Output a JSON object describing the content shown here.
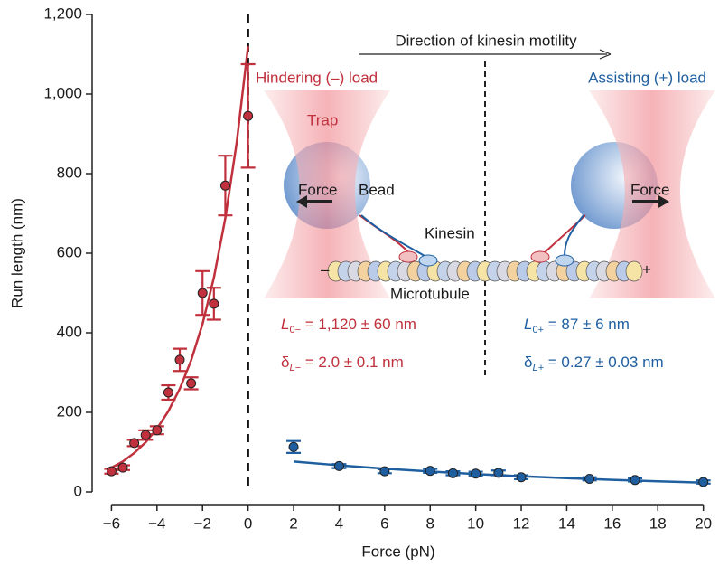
{
  "chart_data": {
    "type": "scatter",
    "xlabel": "Force (pN)",
    "ylabel": "Run length (nm)",
    "xlim": [
      -6.85,
      20.45
    ],
    "ylim": [
      0,
      1200
    ],
    "xticks": [
      {
        "value": -6,
        "label": "−6"
      },
      {
        "value": -4,
        "label": "−4"
      },
      {
        "value": -2,
        "label": "−2"
      },
      0,
      2,
      4,
      6,
      8,
      10,
      12,
      14,
      16,
      18,
      20
    ],
    "yticks": [
      0,
      200,
      400,
      600,
      800,
      {
        "value": 1000,
        "label": "1,000"
      },
      {
        "value": 1200,
        "label": "1,200"
      }
    ],
    "vline": 0,
    "series": [
      {
        "color": "#c0303d",
        "x": [
          -6,
          -5.5,
          -5,
          -4.5,
          -4,
          -3.5,
          -3,
          -2.5,
          -2,
          -1.5,
          -1,
          0
        ],
        "values": [
          52,
          61,
          123,
          143,
          155,
          250,
          332,
          273,
          500,
          473,
          770,
          945
        ],
        "errors": [
          6,
          6,
          8,
          12,
          10,
          18,
          28,
          15,
          55,
          40,
          75,
          130
        ]
      },
      {
        "color": "#1f5fa0",
        "x": [
          2,
          4,
          6,
          8,
          9,
          10,
          11,
          12,
          15,
          17,
          20
        ],
        "values": [
          113,
          65,
          52,
          53,
          47,
          46,
          48,
          37,
          33,
          30,
          25
        ],
        "errors": [
          15,
          5,
          5,
          5,
          5,
          5,
          6,
          5,
          4,
          4,
          4
        ]
      },
      {
        "color": "#c0303d",
        "x": [
          -6.2,
          -5.5,
          -5,
          -4.5,
          -4,
          -3.5,
          -3,
          -2.5,
          -2,
          -1.5,
          -1,
          -0.5,
          0
        ],
        "values": [
          54.5,
          76.6,
          97.8,
          124.7,
          159.2,
          203.2,
          259.3,
          330.8,
          422.2,
          538.8,
          687.7,
          877.6,
          1120
        ]
      },
      {
        "color": "#1f5fa0",
        "x": [
          2,
          4,
          6,
          8,
          10,
          12,
          14,
          16,
          18,
          20
        ],
        "values": [
          76.3,
          66.9,
          58.6,
          51.4,
          45.0,
          39.5,
          34.6,
          30.3,
          26.6,
          23.3
        ]
      }
    ],
    "annotations": {
      "direction": "Direction of kinesin motility",
      "hindering": "Hindering (–) load",
      "assisting": "Assisting (+) load",
      "trap": "Trap",
      "force_left": "Force",
      "bead": "Bead",
      "force_right": "Force",
      "kinesin": "Kinesin",
      "minus_end": "–",
      "plus_end": "+",
      "microtubule": "Microtubule",
      "l_minus": {
        "symbol": "L",
        "sub": "0−",
        "text": " = 1,120 ± 60 nm"
      },
      "d_minus": {
        "symbol": "δ",
        "sub": "L−",
        "text": " = 2.0 ± 0.1 nm"
      },
      "l_plus": {
        "symbol": "L",
        "sub": "0+",
        "text": " = 87 ± 6 nm"
      },
      "d_plus": {
        "symbol": "δ",
        "sub": "L+",
        "text": " = 0.27 ± 0.03 nm"
      }
    }
  }
}
